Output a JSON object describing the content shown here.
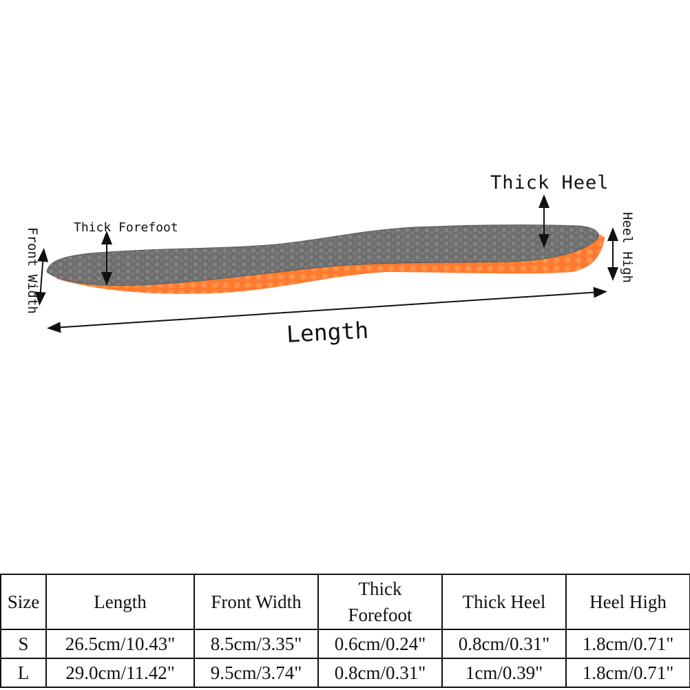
{
  "labels": {
    "thick_heel": "Thick Heel",
    "thick_forefoot": "Thick Forefoot",
    "length": "Length",
    "front_width": "Front Width",
    "heel_high": "Heel High"
  },
  "colors": {
    "insole_top": "#6f6f6f",
    "insole_sole": "#ff7a2e"
  },
  "table": {
    "headers": [
      "Size",
      "Length",
      "Front Width",
      "Thick Forefoot",
      "Thick Heel",
      "Heel High"
    ],
    "rows": [
      [
        "S",
        "26.5cm/10.43\"",
        "8.5cm/3.35\"",
        "0.6cm/0.24\"",
        "0.8cm/0.31\"",
        "1.8cm/0.71\""
      ],
      [
        "L",
        "29.0cm/11.42\"",
        "9.5cm/3.74\"",
        "0.8cm/0.31\"",
        "1cm/0.39\"",
        "1.8cm/0.71\""
      ]
    ]
  }
}
